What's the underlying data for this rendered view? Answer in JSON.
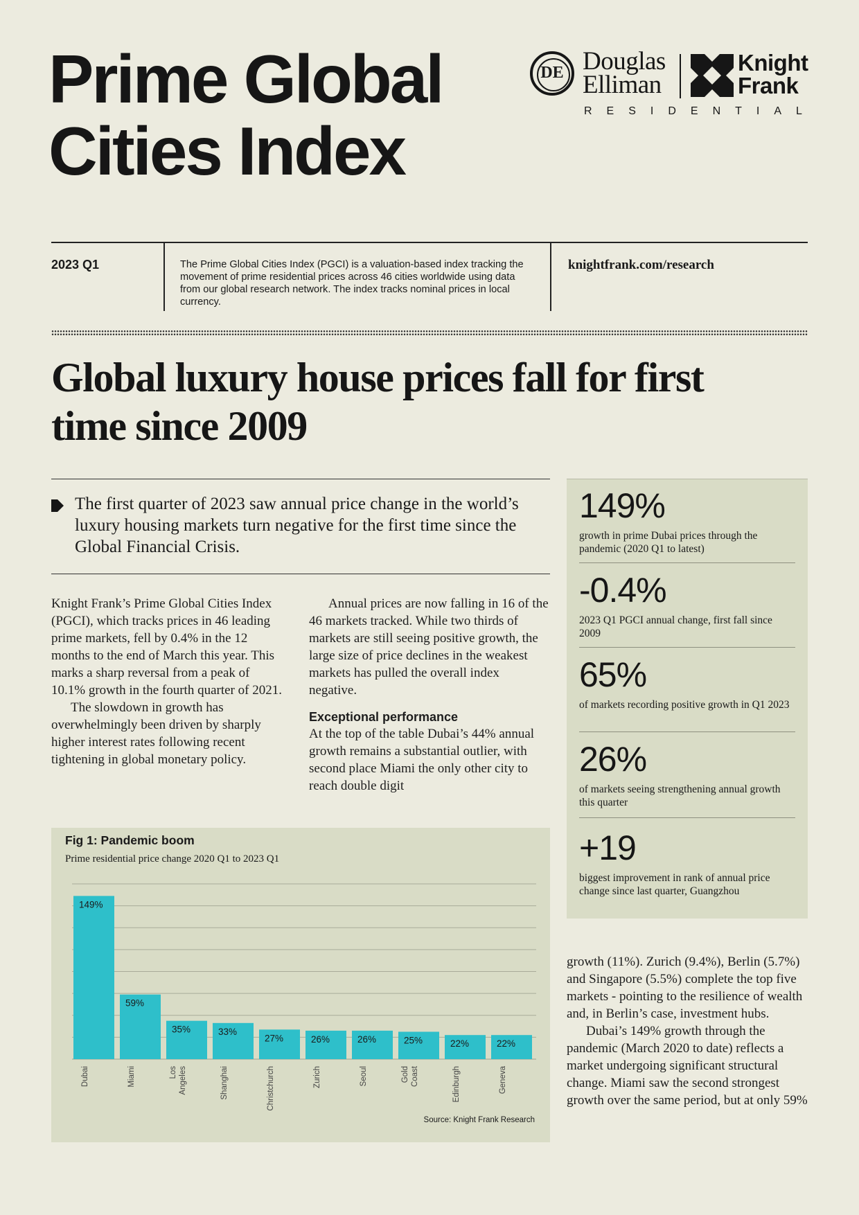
{
  "title": {
    "line1": "Prime Global",
    "line2": "Cities Index"
  },
  "logos": {
    "de_mark": "DE",
    "de_line1": "Douglas",
    "de_line2": "Elliman",
    "kf_line1": "Knight",
    "kf_line2": "Frank",
    "residential": "RESIDENTIAL"
  },
  "strip": {
    "edition": "2023 Q1",
    "description": "The Prime Global Cities Index (PGCI) is a valuation-based index tracking the movement of prime residential prices across 46 cities worldwide using data from our global research network. The index tracks nominal prices in local currency.",
    "url": "knightfrank.com/research"
  },
  "headline": "Global luxury house prices fall for first time since 2009",
  "lead": "The first quarter of 2023 saw annual price change in the world’s luxury housing markets turn negative for the first time since the Global Financial Crisis.",
  "body": {
    "col1_p1": "Knight Frank’s Prime Global Cities Index (PGCI), which tracks prices in 46 leading prime markets, fell by 0.4% in the 12 months to the end of March this year. This marks a sharp reversal from a peak of 10.1% growth in the fourth quarter of 2021.",
    "col1_p2": "The slowdown in growth has overwhelmingly been driven by sharply higher interest rates following recent tightening in global monetary policy.",
    "col2_p1": "Annual prices are now falling in 16 of the 46 markets tracked. While two thirds of markets are still seeing positive growth, the large size of price declines in the weakest markets has pulled the overall index negative.",
    "col2_heading": "Exceptional performance",
    "col2_p2": "At the top of the table Dubai’s 44% annual growth remains a substantial outlier, with second place Miami the only other city to reach double digit",
    "col3_p1": "growth (11%). Zurich (9.4%), Berlin (5.7%) and Singapore (5.5%) complete the top five markets - pointing to the resilience of wealth and, in Berlin’s case, investment hubs.",
    "col3_p2": "Dubai’s 149% growth through the pandemic (March 2020 to date) reflects a market undergoing significant structural change. Miami saw the second strongest growth over the same period, but at only 59%"
  },
  "stats": [
    {
      "value": "149%",
      "label": "growth in prime Dubai prices through the pandemic (2020 Q1 to latest)"
    },
    {
      "value": "-0.4%",
      "label": "2023 Q1 PGCI annual change, first fall since 2009"
    },
    {
      "value": "65%",
      "label": "of markets recording positive growth in Q1 2023"
    },
    {
      "value": "26%",
      "label": "of markets seeing strengthening annual growth this quarter"
    },
    {
      "value": "+19",
      "label": "biggest improvement in rank of annual price change since last quarter, Guangzhou"
    }
  ],
  "chart": {
    "title": "Fig 1: Pandemic boom",
    "subtitle": "Prime residential price change 2020 Q1 to 2023 Q1",
    "source": "Source: Knight Frank Research"
  },
  "chart_data": {
    "type": "bar",
    "title": "Fig 1: Pandemic boom",
    "subtitle": "Prime residential price change 2020 Q1 to 2023 Q1",
    "categories": [
      "Dubai",
      "Miami",
      "Los Angeles",
      "Shanghai",
      "Christchurch",
      "Zurich",
      "Seoul",
      "Gold Coast",
      "Edinburgh",
      "Geneva"
    ],
    "values": [
      149,
      59,
      35,
      33,
      27,
      26,
      26,
      25,
      22,
      22
    ],
    "value_labels": [
      "149%",
      "59%",
      "35%",
      "33%",
      "27%",
      "26%",
      "26%",
      "25%",
      "22%",
      "22%"
    ],
    "ylim": [
      0,
      160
    ],
    "grid": true,
    "bar_color": "#2ebfca"
  }
}
